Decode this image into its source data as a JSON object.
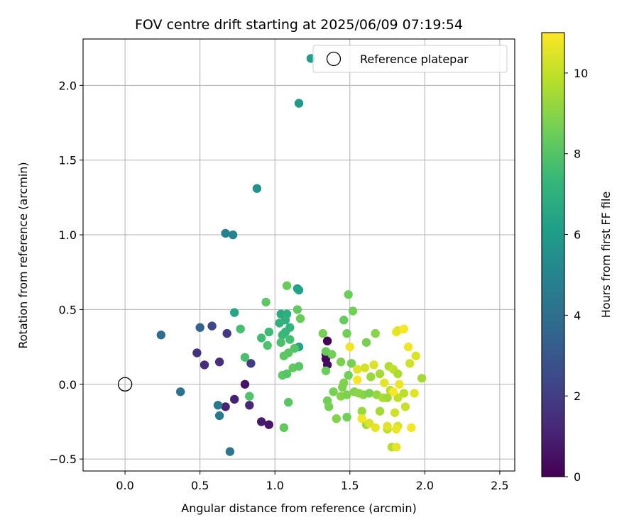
{
  "chart_data": {
    "type": "scatter",
    "title": "FOV centre drift starting at 2025/06/09 07:19:54",
    "xlabel": "Angular distance from reference (arcmin)",
    "ylabel": "Rotation from reference (arcmin)",
    "xlim": [
      -0.28,
      2.6
    ],
    "ylim": [
      -0.58,
      2.31
    ],
    "xticks": [
      0.0,
      0.5,
      1.0,
      1.5,
      2.0,
      2.5
    ],
    "xtick_labels": [
      "0.0",
      "0.5",
      "1.0",
      "1.5",
      "2.0",
      "2.5"
    ],
    "yticks": [
      -0.5,
      0.0,
      0.5,
      1.0,
      1.5,
      2.0
    ],
    "ytick_labels": [
      "−0.5",
      "0.0",
      "0.5",
      "1.0",
      "1.5",
      "2.0"
    ],
    "grid": true,
    "colormap": "viridis",
    "colorbar": {
      "label": "Hours from first FF file",
      "range": [
        0,
        11
      ],
      "ticks": [
        0,
        2,
        4,
        6,
        8,
        10
      ],
      "tick_labels": [
        "0",
        "2",
        "4",
        "6",
        "8",
        "10"
      ]
    },
    "legend": {
      "position": "top-right",
      "entries": [
        {
          "label": "Reference platepar",
          "marker": "open-circle"
        }
      ]
    },
    "reference_point": {
      "x": 0.0,
      "y": 0.0
    },
    "points": [
      {
        "x": 1.35,
        "y": 0.29,
        "h": 0.0
      },
      {
        "x": 1.34,
        "y": 0.2,
        "h": 0.1
      },
      {
        "x": 1.34,
        "y": 0.17,
        "h": 0.2
      },
      {
        "x": 1.35,
        "y": 0.13,
        "h": 0.3
      },
      {
        "x": 0.8,
        "y": 0.0,
        "h": 0.6
      },
      {
        "x": 0.96,
        "y": -0.27,
        "h": 0.7
      },
      {
        "x": 0.91,
        "y": -0.25,
        "h": 0.8
      },
      {
        "x": 0.73,
        "y": -0.1,
        "h": 1.0
      },
      {
        "x": 0.67,
        "y": -0.15,
        "h": 1.1
      },
      {
        "x": 0.83,
        "y": -0.14,
        "h": 1.2
      },
      {
        "x": 0.53,
        "y": 0.13,
        "h": 1.4
      },
      {
        "x": 0.63,
        "y": 0.15,
        "h": 1.5
      },
      {
        "x": 0.48,
        "y": 0.21,
        "h": 1.6
      },
      {
        "x": 0.68,
        "y": 0.34,
        "h": 1.8
      },
      {
        "x": 0.84,
        "y": 0.14,
        "h": 2.0
      },
      {
        "x": 0.58,
        "y": 0.39,
        "h": 2.4
      },
      {
        "x": 0.5,
        "y": 0.38,
        "h": 3.5
      },
      {
        "x": 0.24,
        "y": 0.33,
        "h": 3.9
      },
      {
        "x": 0.37,
        "y": -0.05,
        "h": 4.2
      },
      {
        "x": 0.7,
        "y": -0.45,
        "h": 4.3
      },
      {
        "x": 0.62,
        "y": -0.14,
        "h": 4.4
      },
      {
        "x": 0.63,
        "y": -0.21,
        "h": 4.5
      },
      {
        "x": 0.67,
        "y": 1.01,
        "h": 4.9
      },
      {
        "x": 0.72,
        "y": 1.0,
        "h": 5.0
      },
      {
        "x": 0.88,
        "y": 1.31,
        "h": 5.6
      },
      {
        "x": 1.16,
        "y": 1.88,
        "h": 5.9
      },
      {
        "x": 1.24,
        "y": 2.18,
        "h": 6.1
      },
      {
        "x": 1.15,
        "y": 0.64,
        "h": 6.2
      },
      {
        "x": 1.16,
        "y": 0.63,
        "h": 6.3
      },
      {
        "x": 1.16,
        "y": 0.25,
        "h": 6.4
      },
      {
        "x": 0.73,
        "y": 0.48,
        "h": 6.5
      },
      {
        "x": 1.04,
        "y": 0.47,
        "h": 6.7
      },
      {
        "x": 1.08,
        "y": 0.47,
        "h": 6.9
      },
      {
        "x": 1.07,
        "y": 0.43,
        "h": 7.0
      },
      {
        "x": 1.03,
        "y": 0.41,
        "h": 7.1
      },
      {
        "x": 1.1,
        "y": 0.38,
        "h": 7.2
      },
      {
        "x": 1.07,
        "y": 0.35,
        "h": 7.3
      },
      {
        "x": 1.05,
        "y": 0.33,
        "h": 7.4
      },
      {
        "x": 0.96,
        "y": 0.35,
        "h": 7.5
      },
      {
        "x": 0.91,
        "y": 0.31,
        "h": 7.6
      },
      {
        "x": 1.1,
        "y": 0.3,
        "h": 7.7
      },
      {
        "x": 1.04,
        "y": 0.28,
        "h": 7.8
      },
      {
        "x": 0.95,
        "y": 0.26,
        "h": 7.9
      },
      {
        "x": 1.13,
        "y": 0.24,
        "h": 8.0
      },
      {
        "x": 1.09,
        "y": 0.21,
        "h": 8.1
      },
      {
        "x": 1.06,
        "y": 0.19,
        "h": 8.2
      },
      {
        "x": 1.12,
        "y": 0.11,
        "h": 8.3
      },
      {
        "x": 1.16,
        "y": 0.12,
        "h": 8.1
      },
      {
        "x": 1.05,
        "y": 0.06,
        "h": 8.2
      },
      {
        "x": 1.08,
        "y": 0.07,
        "h": 8.0
      },
      {
        "x": 1.09,
        "y": -0.12,
        "h": 8.1
      },
      {
        "x": 1.06,
        "y": -0.29,
        "h": 8.3
      },
      {
        "x": 0.8,
        "y": 0.18,
        "h": 7.8
      },
      {
        "x": 0.77,
        "y": 0.37,
        "h": 7.7
      },
      {
        "x": 0.83,
        "y": -0.08,
        "h": 7.9
      },
      {
        "x": 0.94,
        "y": 0.55,
        "h": 8.2
      },
      {
        "x": 1.08,
        "y": 0.66,
        "h": 8.4
      },
      {
        "x": 1.15,
        "y": 0.5,
        "h": 8.3
      },
      {
        "x": 1.17,
        "y": 0.44,
        "h": 8.4
      },
      {
        "x": 1.49,
        "y": 0.6,
        "h": 8.5
      },
      {
        "x": 1.52,
        "y": 0.49,
        "h": 8.6
      },
      {
        "x": 1.46,
        "y": 0.43,
        "h": 8.4
      },
      {
        "x": 1.48,
        "y": 0.34,
        "h": 8.6
      },
      {
        "x": 1.32,
        "y": 0.34,
        "h": 8.7
      },
      {
        "x": 1.34,
        "y": 0.22,
        "h": 8.4
      },
      {
        "x": 1.38,
        "y": 0.2,
        "h": 8.6
      },
      {
        "x": 1.44,
        "y": 0.15,
        "h": 8.8
      },
      {
        "x": 1.51,
        "y": 0.14,
        "h": 8.7
      },
      {
        "x": 1.34,
        "y": 0.09,
        "h": 8.5
      },
      {
        "x": 1.49,
        "y": 0.06,
        "h": 8.6
      },
      {
        "x": 1.46,
        "y": 0.01,
        "h": 8.9
      },
      {
        "x": 1.45,
        "y": -0.02,
        "h": 8.8
      },
      {
        "x": 1.39,
        "y": -0.05,
        "h": 8.7
      },
      {
        "x": 1.53,
        "y": -0.05,
        "h": 8.9
      },
      {
        "x": 1.44,
        "y": -0.08,
        "h": 9.0
      },
      {
        "x": 1.48,
        "y": -0.07,
        "h": 8.8
      },
      {
        "x": 1.35,
        "y": -0.11,
        "h": 8.6
      },
      {
        "x": 1.36,
        "y": -0.15,
        "h": 8.7
      },
      {
        "x": 1.41,
        "y": -0.23,
        "h": 8.9
      },
      {
        "x": 1.48,
        "y": -0.22,
        "h": 8.6
      },
      {
        "x": 1.56,
        "y": -0.06,
        "h": 9.1
      },
      {
        "x": 1.59,
        "y": -0.07,
        "h": 9.0
      },
      {
        "x": 1.63,
        "y": -0.06,
        "h": 8.8
      },
      {
        "x": 1.61,
        "y": 0.28,
        "h": 8.7
      },
      {
        "x": 1.67,
        "y": 0.34,
        "h": 9.0
      },
      {
        "x": 1.58,
        "y": -0.18,
        "h": 9.3
      },
      {
        "x": 1.61,
        "y": -0.27,
        "h": 9.4
      },
      {
        "x": 1.68,
        "y": -0.07,
        "h": 9.2
      },
      {
        "x": 1.7,
        "y": 0.07,
        "h": 9.5
      },
      {
        "x": 1.64,
        "y": 0.05,
        "h": 9.3
      },
      {
        "x": 1.72,
        "y": -0.09,
        "h": 9.6
      },
      {
        "x": 1.75,
        "y": -0.09,
        "h": 9.4
      },
      {
        "x": 1.77,
        "y": -0.04,
        "h": 9.8
      },
      {
        "x": 1.76,
        "y": 0.12,
        "h": 9.7
      },
      {
        "x": 1.79,
        "y": 0.1,
        "h": 10.0
      },
      {
        "x": 1.82,
        "y": 0.07,
        "h": 9.6
      },
      {
        "x": 1.7,
        "y": -0.18,
        "h": 9.5
      },
      {
        "x": 1.75,
        "y": -0.3,
        "h": 9.9
      },
      {
        "x": 1.78,
        "y": -0.42,
        "h": 9.8
      },
      {
        "x": 1.81,
        "y": -0.42,
        "h": 10.6
      },
      {
        "x": 1.8,
        "y": -0.19,
        "h": 10.2
      },
      {
        "x": 1.82,
        "y": -0.09,
        "h": 10.0
      },
      {
        "x": 1.86,
        "y": -0.06,
        "h": 9.9
      },
      {
        "x": 1.87,
        "y": -0.15,
        "h": 10.1
      },
      {
        "x": 1.82,
        "y": -0.28,
        "h": 10.3
      },
      {
        "x": 1.81,
        "y": -0.3,
        "h": 10.7
      },
      {
        "x": 1.75,
        "y": -0.28,
        "h": 10.5
      },
      {
        "x": 1.67,
        "y": -0.29,
        "h": 10.6
      },
      {
        "x": 1.63,
        "y": -0.26,
        "h": 10.4
      },
      {
        "x": 1.58,
        "y": -0.23,
        "h": 10.8
      },
      {
        "x": 1.55,
        "y": 0.03,
        "h": 10.9
      },
      {
        "x": 1.55,
        "y": 0.1,
        "h": 10.5
      },
      {
        "x": 1.5,
        "y": 0.25,
        "h": 10.8
      },
      {
        "x": 1.6,
        "y": 0.11,
        "h": 10.3
      },
      {
        "x": 1.66,
        "y": 0.13,
        "h": 10.4
      },
      {
        "x": 1.73,
        "y": 0.01,
        "h": 10.6
      },
      {
        "x": 1.79,
        "y": -0.05,
        "h": 10.9
      },
      {
        "x": 1.83,
        "y": 0.0,
        "h": 10.7
      },
      {
        "x": 1.81,
        "y": 0.35,
        "h": 10.8
      },
      {
        "x": 1.82,
        "y": 0.36,
        "h": 10.5
      },
      {
        "x": 1.86,
        "y": 0.37,
        "h": 10.9
      },
      {
        "x": 1.89,
        "y": 0.25,
        "h": 10.8
      },
      {
        "x": 1.94,
        "y": 0.19,
        "h": 10.4
      },
      {
        "x": 1.9,
        "y": 0.14,
        "h": 10.2
      },
      {
        "x": 1.93,
        "y": -0.06,
        "h": 10.5
      },
      {
        "x": 1.91,
        "y": -0.29,
        "h": 10.9
      },
      {
        "x": 1.98,
        "y": 0.04,
        "h": 9.5
      }
    ]
  }
}
